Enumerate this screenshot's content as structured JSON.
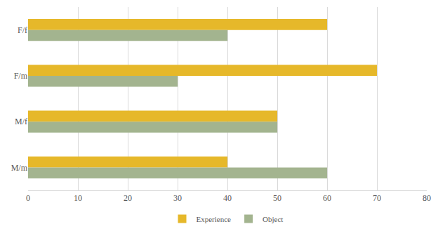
{
  "chart_data": {
    "type": "bar",
    "orientation": "horizontal",
    "categories": [
      "F/f",
      "F/m",
      "M/f",
      "M/m"
    ],
    "series": [
      {
        "name": "Experience",
        "color": "#e6b82a",
        "values": [
          60,
          70,
          50,
          40
        ]
      },
      {
        "name": "Object",
        "color": "#a3b48f",
        "values": [
          40,
          30,
          50,
          60
        ]
      }
    ],
    "xlim": [
      0,
      80
    ],
    "xticks": [
      0,
      10,
      20,
      30,
      40,
      50,
      60,
      70,
      80
    ],
    "grid": true,
    "legend": "bottom"
  }
}
